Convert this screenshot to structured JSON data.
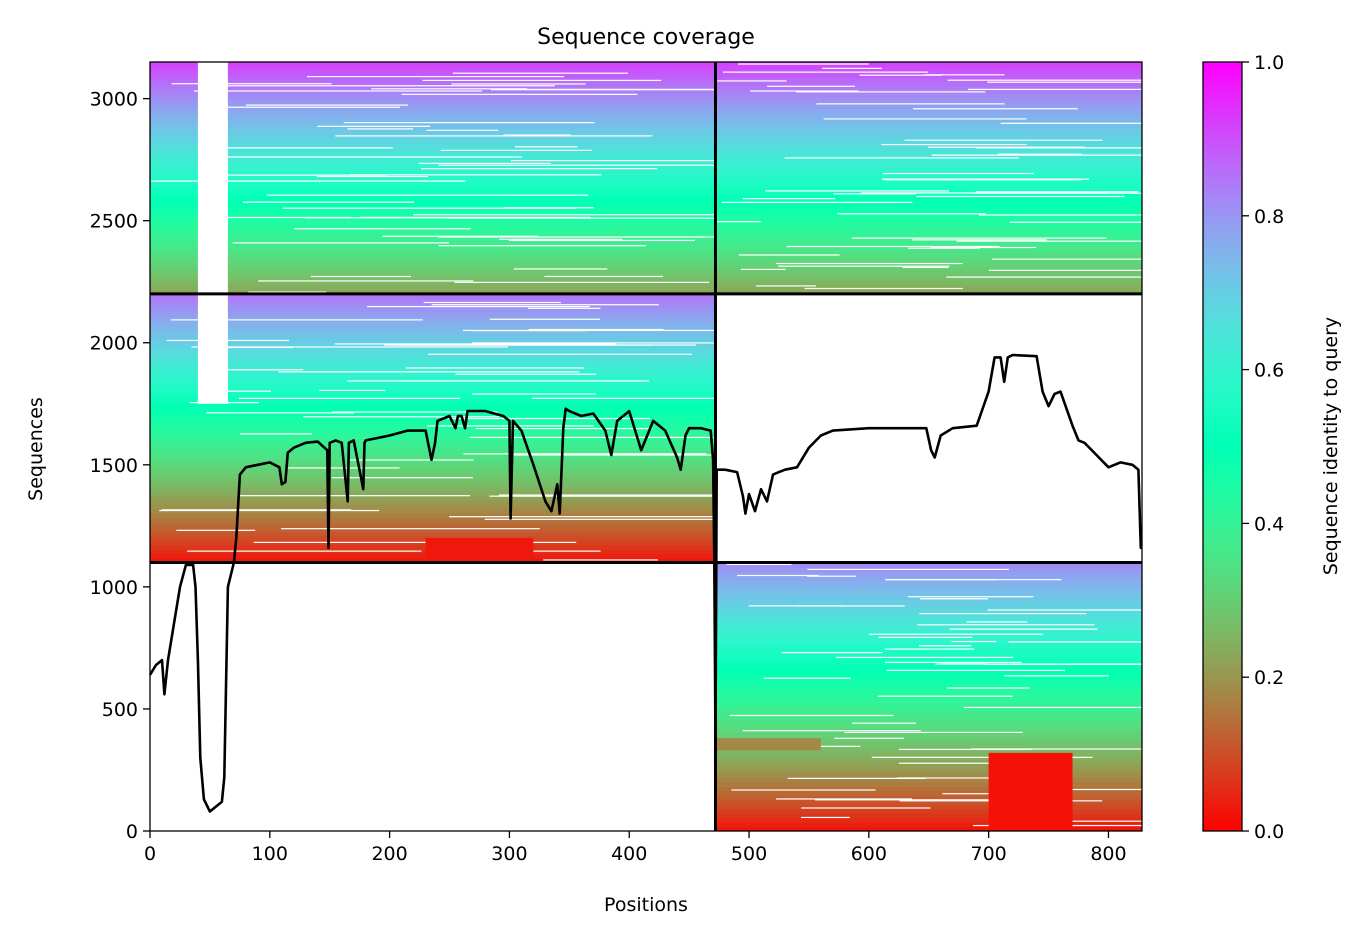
{
  "chart_data": {
    "type": "heatmap",
    "title": "Sequence coverage",
    "xlabel": "Positions",
    "ylabel": "Sequences",
    "xlim": [
      0,
      828
    ],
    "ylim": [
      0,
      3150
    ],
    "xticks": [
      "0",
      "100",
      "200",
      "300",
      "400",
      "500",
      "600",
      "700",
      "800"
    ],
    "yticks": [
      "0",
      "500",
      "1000",
      "1500",
      "2000",
      "2500",
      "3000"
    ],
    "colorbar": {
      "label": "Sequence identity to query",
      "ticks": [
        "0.0",
        "0.2",
        "0.4",
        "0.6",
        "0.8",
        "1.0"
      ],
      "range": [
        0,
        1
      ],
      "colormap": "rainbow_r"
    },
    "dividers": {
      "vertical_x": 472,
      "horizontal_y": [
        1100,
        2200
      ]
    },
    "blocks": [
      {
        "name": "top-left",
        "x": [
          0,
          472
        ],
        "y": [
          2200,
          3150
        ],
        "identity_bottom": 0.22,
        "identity_top": 0.92
      },
      {
        "name": "top-right",
        "x": [
          472,
          828
        ],
        "y": [
          2200,
          3150
        ],
        "identity_bottom": 0.22,
        "identity_top": 0.92
      },
      {
        "name": "middle-left",
        "x": [
          0,
          472
        ],
        "y": [
          1100,
          2200
        ],
        "identity_bottom": 0.02,
        "identity_top": 0.85
      },
      {
        "name": "bottom-right",
        "x": [
          472,
          828
        ],
        "y": [
          0,
          1100
        ],
        "identity_bottom": 0.02,
        "identity_top": 0.82
      }
    ],
    "coverage_line": {
      "x": [
        0,
        5,
        10,
        12,
        15,
        20,
        25,
        30,
        36,
        38,
        40,
        42,
        45,
        50,
        55,
        60,
        62,
        65,
        70,
        72,
        75,
        80,
        90,
        100,
        108,
        110,
        113,
        115,
        120,
        130,
        140,
        148,
        149,
        150,
        155,
        160,
        165,
        166,
        170,
        178,
        179,
        180,
        190,
        200,
        215,
        230,
        235,
        238,
        240,
        250,
        255,
        257,
        260,
        263,
        265,
        270,
        280,
        295,
        300,
        301,
        303,
        310,
        320,
        330,
        335,
        340,
        342,
        345,
        347,
        350,
        360,
        370,
        380,
        385,
        390,
        395,
        400,
        410,
        420,
        430,
        440,
        443,
        447,
        450,
        460,
        468,
        470,
        471,
        472,
        473,
        480,
        490,
        495,
        497,
        500,
        505,
        510,
        515,
        520,
        525,
        530,
        540,
        550,
        560,
        570,
        600,
        640,
        648,
        652,
        655,
        660,
        670,
        690,
        700,
        705,
        710,
        713,
        716,
        720,
        740,
        745,
        750,
        755,
        760,
        770,
        775,
        780,
        790,
        800,
        810,
        820,
        825,
        827,
        828
      ],
      "y": [
        640,
        680,
        700,
        560,
        700,
        850,
        1000,
        1090,
        1090,
        1000,
        700,
        300,
        130,
        80,
        100,
        120,
        220,
        1000,
        1100,
        1200,
        1460,
        1490,
        1500,
        1510,
        1490,
        1420,
        1430,
        1550,
        1570,
        1590,
        1595,
        1560,
        1160,
        1590,
        1600,
        1590,
        1350,
        1590,
        1600,
        1400,
        1590,
        1600,
        1610,
        1620,
        1640,
        1640,
        1520,
        1590,
        1680,
        1700,
        1650,
        1700,
        1700,
        1650,
        1720,
        1720,
        1720,
        1700,
        1680,
        1280,
        1680,
        1640,
        1500,
        1350,
        1310,
        1420,
        1300,
        1650,
        1730,
        1720,
        1700,
        1710,
        1640,
        1540,
        1680,
        1700,
        1720,
        1560,
        1680,
        1640,
        1530,
        1480,
        1620,
        1650,
        1650,
        1640,
        1520,
        1110,
        370,
        1480,
        1480,
        1470,
        1370,
        1300,
        1380,
        1310,
        1400,
        1350,
        1460,
        1470,
        1480,
        1490,
        1570,
        1620,
        1640,
        1650,
        1650,
        1650,
        1560,
        1530,
        1620,
        1650,
        1660,
        1800,
        1940,
        1940,
        1840,
        1940,
        1950,
        1945,
        1800,
        1740,
        1790,
        1800,
        1660,
        1600,
        1590,
        1540,
        1490,
        1510,
        1500,
        1480,
        1160,
        1160
      ]
    }
  }
}
